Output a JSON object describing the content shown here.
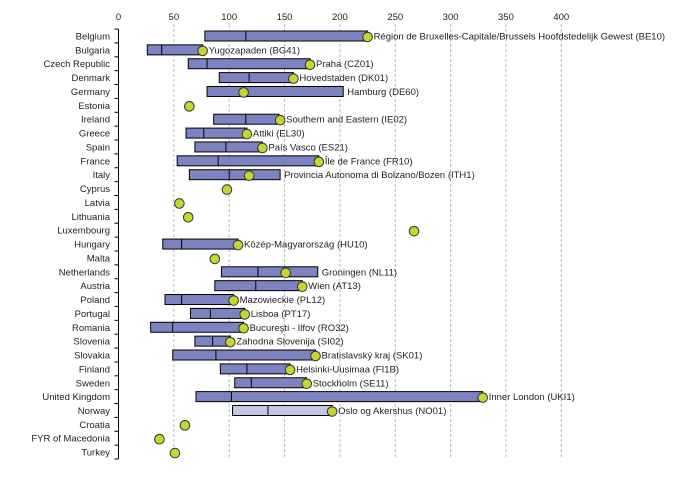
{
  "chart_data": {
    "type": "bar",
    "orientation": "horizontal range bars with highlighted region marker",
    "xlim": [
      0,
      400
    ],
    "xticks": [
      0,
      50,
      100,
      150,
      200,
      250,
      300,
      350,
      400
    ],
    "grid": true,
    "colors": {
      "bar": "#7b84c1",
      "bar_light": "#c3c6e4",
      "marker": "#c4d72e",
      "grid": "#bbbbbb"
    },
    "rows": [
      {
        "country": "Belgium",
        "min": 78,
        "mid": 115,
        "max": 225,
        "point": 225,
        "label": "Région de Bruxelles-Capitale/Brussels Hoofdstedelijk Gewest (BE10)"
      },
      {
        "country": "Bulgaria",
        "min": 26,
        "mid": 39,
        "max": 76,
        "point": 76,
        "label": "Yugozapaden (BG41)"
      },
      {
        "country": "Czech Republic",
        "min": 63,
        "mid": 80,
        "max": 173,
        "point": 173,
        "label": "Praha (CZ01)"
      },
      {
        "country": "Denmark",
        "min": 91,
        "mid": 118,
        "max": 158,
        "point": 158,
        "label": "Hovedstaden (DK01)"
      },
      {
        "country": "Germany",
        "min": 80,
        "mid": 113,
        "max": 203,
        "point": 113,
        "label": "Hamburg (DE60)"
      },
      {
        "country": "Estonia",
        "min": null,
        "mid": null,
        "max": null,
        "point": 64,
        "label": ""
      },
      {
        "country": "Ireland",
        "min": 86,
        "mid": 115,
        "max": 145,
        "point": 146,
        "label": "Southern and Eastern (IE02)"
      },
      {
        "country": "Greece",
        "min": 61,
        "mid": 77,
        "max": 116,
        "point": 116,
        "label": "Attiki (EL30)"
      },
      {
        "country": "Spain",
        "min": 69,
        "mid": 97,
        "max": 130,
        "point": 130,
        "label": "País Vasco (ES21)"
      },
      {
        "country": "France",
        "min": 53,
        "mid": 90,
        "max": 181,
        "point": 181,
        "label": "Île de France (FR10)"
      },
      {
        "country": "Italy",
        "min": 64,
        "mid": 100,
        "max": 146,
        "point": 118,
        "label": "Provincia Autonoma di Bolzano/Bozen (ITH1)"
      },
      {
        "country": "Cyprus",
        "min": null,
        "mid": null,
        "max": null,
        "point": 98,
        "label": ""
      },
      {
        "country": "Latvia",
        "min": null,
        "mid": null,
        "max": null,
        "point": 55,
        "label": ""
      },
      {
        "country": "Lithuania",
        "min": null,
        "mid": null,
        "max": null,
        "point": 63,
        "label": ""
      },
      {
        "country": "Luxembourg",
        "min": null,
        "mid": null,
        "max": null,
        "point": 267,
        "label": ""
      },
      {
        "country": "Hungary",
        "min": 40,
        "mid": 57,
        "max": 108,
        "point": 108,
        "label": "Közép-Magyarország (HU10)"
      },
      {
        "country": "Malta",
        "min": null,
        "mid": null,
        "max": null,
        "point": 87,
        "label": ""
      },
      {
        "country": "Netherlands",
        "min": 93,
        "mid": 126,
        "max": 180,
        "point": 151,
        "label": "Groningen (NL11)"
      },
      {
        "country": "Austria",
        "min": 87,
        "mid": 124,
        "max": 166,
        "point": 166,
        "label": "Wien (AT13)"
      },
      {
        "country": "Poland",
        "min": 42,
        "mid": 57,
        "max": 104,
        "point": 104,
        "label": "Mazowieckie (PL12)"
      },
      {
        "country": "Portugal",
        "min": 65,
        "mid": 83,
        "max": 114,
        "point": 114,
        "label": "Lisboa (PT17)"
      },
      {
        "country": "Romania",
        "min": 29,
        "mid": 49,
        "max": 113,
        "point": 113,
        "label": "Bucureşti - Ilfov (RO32)"
      },
      {
        "country": "Slovenia",
        "min": 69,
        "mid": 85,
        "max": 101,
        "point": 101,
        "label": "Zahodna Slovenija (SI02)"
      },
      {
        "country": "Slovakia",
        "min": 49,
        "mid": 88,
        "max": 178,
        "point": 178,
        "label": "Bratislavský kraj (SK01)"
      },
      {
        "country": "Finland",
        "min": 92,
        "mid": 116,
        "max": 155,
        "point": 155,
        "label": "Helsinki-Uusimaa (FI1B)"
      },
      {
        "country": "Sweden",
        "min": 105,
        "mid": 120,
        "max": 170,
        "point": 170,
        "label": "Stockholm (SE11)"
      },
      {
        "country": "United Kingdom",
        "min": 70,
        "mid": 102,
        "max": 329,
        "point": 329,
        "label": "Inner London (UKI1)"
      },
      {
        "country": "Norway",
        "min": 103,
        "mid": 135,
        "max": 193,
        "point": 193,
        "label": "Oslo og Akershus (NO01)",
        "light": true
      },
      {
        "country": "Croatia",
        "min": null,
        "mid": null,
        "max": null,
        "point": 60,
        "label": ""
      },
      {
        "country": "FYR of Macedonia",
        "min": null,
        "mid": null,
        "max": null,
        "point": 37,
        "label": ""
      },
      {
        "country": "Turkey",
        "min": null,
        "mid": null,
        "max": null,
        "point": 51,
        "label": ""
      }
    ]
  }
}
